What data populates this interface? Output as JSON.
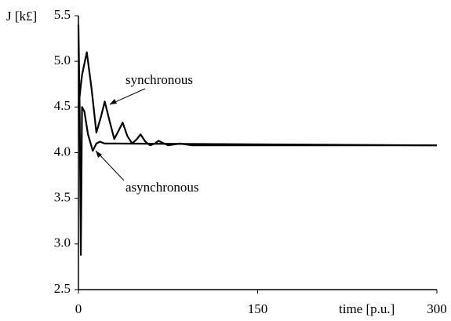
{
  "chart_data": {
    "type": "line",
    "ylabel": "J [k£]",
    "xlabel": "time [p.u.]",
    "xlim": [
      0,
      300
    ],
    "xticks": [
      0,
      150,
      300
    ],
    "ylim": [
      2.5,
      5.5
    ],
    "yticks": [
      2.5,
      {
        "value": 3,
        "label": "3.0"
      },
      3.5,
      {
        "value": 4,
        "label": "4.0"
      },
      4.5,
      {
        "value": 5,
        "label": "5.0"
      },
      5.5
    ],
    "series": [
      {
        "name": "synchronous",
        "color": "#000000",
        "x": [
          0,
          3,
          7,
          11,
          15,
          19,
          22,
          26,
          30,
          34,
          37,
          41,
          45,
          49,
          52,
          56,
          60,
          64,
          67,
          75,
          85,
          95,
          110,
          150,
          300
        ],
        "values": [
          4.5,
          4.85,
          5.1,
          4.7,
          4.22,
          4.4,
          4.56,
          4.35,
          4.15,
          4.25,
          4.33,
          4.18,
          4.1,
          4.15,
          4.2,
          4.12,
          4.08,
          4.1,
          4.13,
          4.08,
          4.1,
          4.08,
          4.08,
          4.08,
          4.08
        ]
      },
      {
        "name": "asynchronous",
        "color": "#000000",
        "x": [
          0,
          1,
          2,
          3,
          5,
          8,
          12,
          15,
          18,
          22,
          30,
          300
        ],
        "values": [
          5.4,
          4.5,
          2.88,
          4.5,
          4.45,
          4.2,
          4.02,
          4.1,
          4.12,
          4.1,
          4.1,
          4.08
        ]
      }
    ]
  }
}
